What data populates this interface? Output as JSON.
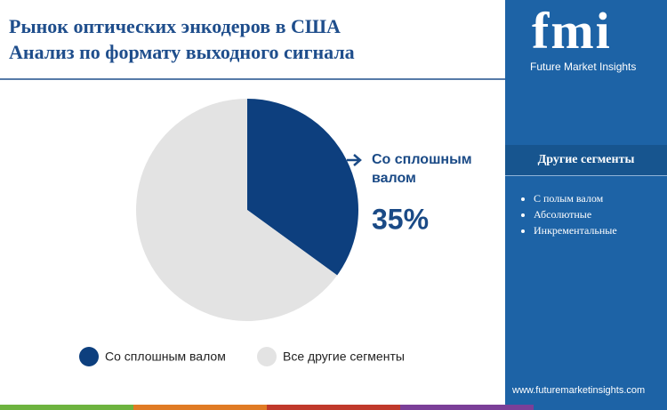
{
  "chart_data": {
    "type": "pie",
    "title": "Рынок оптических энкодеров в США",
    "subtitle": "Анализ по формату выходного сигнала",
    "categories": [
      "Со сплошным валом",
      "Все другие сегменты"
    ],
    "values": [
      35,
      65
    ],
    "value_labels": [
      "35%",
      null
    ],
    "colors": [
      "#0d3f7e",
      "#e3e3e3"
    ]
  },
  "sidebar": {
    "logo": "fmi",
    "brand": "Future Market Insights",
    "other_segments": {
      "title": "Другие сегменты",
      "items": [
        "С полым валом",
        "Абсолютные",
        "Инкрементальные"
      ]
    },
    "website": "www.futuremarketinsights.com"
  }
}
